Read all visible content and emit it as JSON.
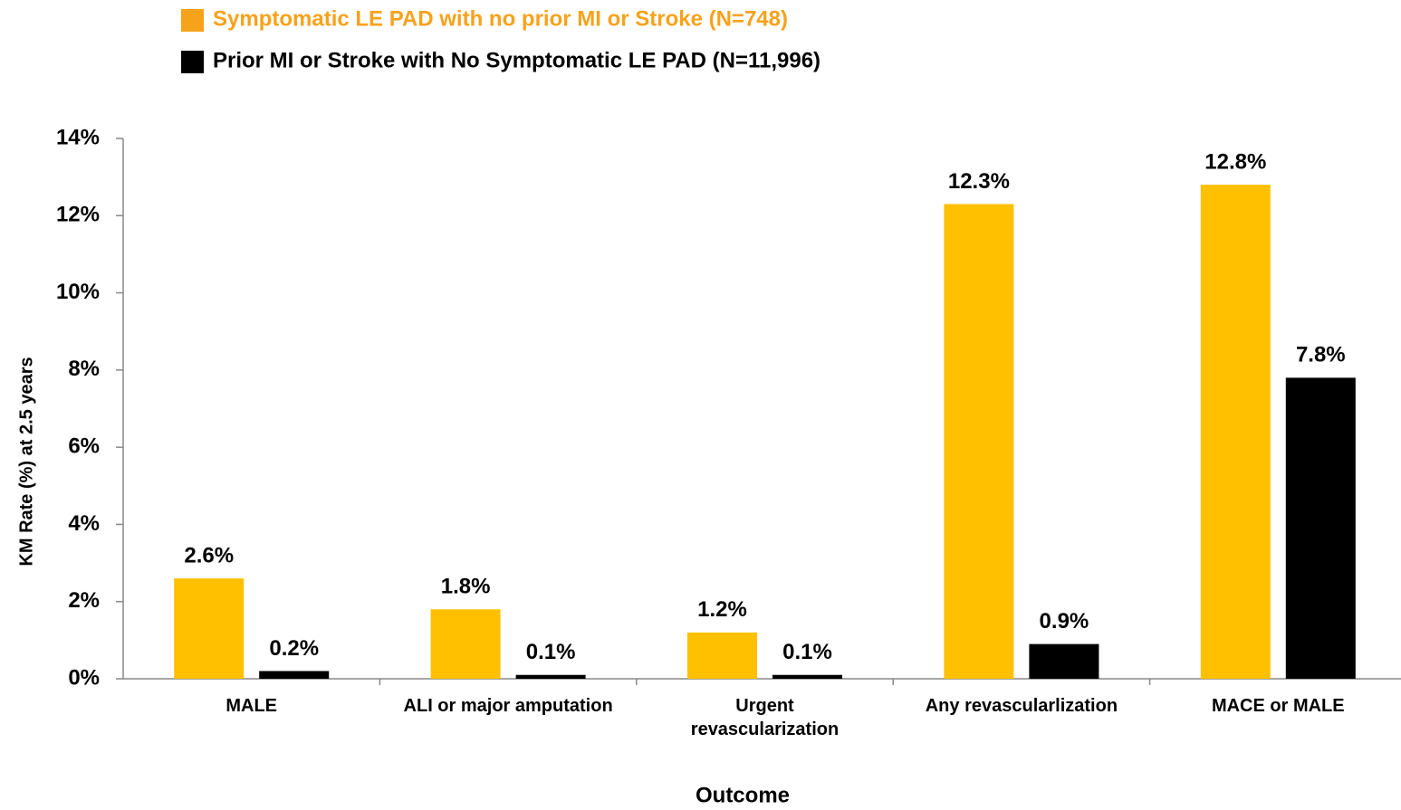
{
  "chart_data": {
    "type": "bar",
    "x_label": "Outcome",
    "y_label": "KM Rate (%) at 2.5 years",
    "categories": [
      "MALE",
      "ALI or major amputation",
      "Urgent\nrevascularization",
      "Any revascularlization",
      "MACE or MALE"
    ],
    "series": [
      {
        "name": "Symptomatic LE PAD with no prior MI or Stroke (N=748)",
        "color": "#ffc000",
        "legend_color": "#f7a21b",
        "values": [
          2.6,
          1.8,
          1.2,
          12.3,
          12.8
        ],
        "value_labels": [
          "2.6%",
          "1.8%",
          "1.2%",
          "12.3%",
          "12.8%"
        ]
      },
      {
        "name": "Prior MI or Stroke with No Symptomatic LE PAD (N=11,996)",
        "color": "#000000",
        "legend_color": "#000000",
        "values": [
          0.2,
          0.1,
          0.1,
          0.9,
          7.8
        ],
        "value_labels": [
          "0.2%",
          "0.1%",
          "0.1%",
          "0.9%",
          "7.8%"
        ]
      }
    ],
    "ylim": [
      0,
      14
    ],
    "yticks": [
      {
        "value": 0,
        "label": "0%"
      },
      {
        "value": 2,
        "label": "2%"
      },
      {
        "value": 4,
        "label": "4%"
      },
      {
        "value": 6,
        "label": "6%"
      },
      {
        "value": 8,
        "label": "8%"
      },
      {
        "value": 10,
        "label": "10%"
      },
      {
        "value": 12,
        "label": "12%"
      },
      {
        "value": 14,
        "label": "14%"
      }
    ],
    "grid": false
  }
}
